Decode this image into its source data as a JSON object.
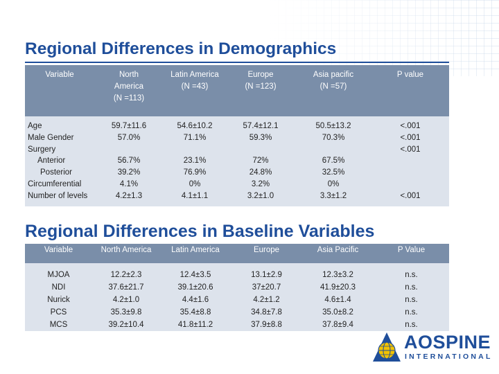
{
  "slide": {
    "title1": "Regional Differences in Demographics",
    "title2": "Regional Differences in Baseline Variables"
  },
  "demographics": {
    "headers": {
      "variable": "Variable",
      "north_america": [
        "North",
        "America",
        "(N =113)"
      ],
      "latin_america": [
        "Latin America",
        "(N =43)"
      ],
      "europe": [
        "Europe",
        "(N =123)"
      ],
      "asia_pacific": [
        "Asia pacific",
        "(N =57)"
      ],
      "p_value": "P value"
    },
    "rows": [
      {
        "label": "Age",
        "na": "59.7±11.6",
        "la": "54.6±10.2",
        "eu": "57.4±12.1",
        "ap": "50.5±13.2",
        "p": "<.001"
      },
      {
        "label": "Male Gender",
        "na": "57.0%",
        "la": "71.1%",
        "eu": "59.3%",
        "ap": "70.3%",
        "p": "<.001"
      },
      {
        "label": "Surgery",
        "na": "",
        "la": "",
        "eu": "",
        "ap": "",
        "p": "<.001"
      },
      {
        "label": "Anterior",
        "na": "56.7%",
        "la": "23.1%",
        "eu": "72%",
        "ap": "67.5%",
        "p": ""
      },
      {
        "label": "Posterior",
        "na": "39.2%",
        "la": "76.9%",
        "eu": "24.8%",
        "ap": "32.5%",
        "p": ""
      },
      {
        "label": "Circumferential",
        "na": "4.1%",
        "la": "0%",
        "eu": "3.2%",
        "ap": "0%",
        "p": ""
      },
      {
        "label": "Number of levels",
        "na": "4.2±1.3",
        "la": "4.1±1.1",
        "eu": "3.2±1.0",
        "ap": "3.3±1.2",
        "p": "<.001"
      }
    ]
  },
  "baseline": {
    "headers": {
      "variable": "Variable",
      "north_america": "North America",
      "latin_america": "Latin America",
      "europe": "Europe",
      "asia_pacific": "Asia Pacific",
      "p_value": "P Value"
    },
    "rows": [
      {
        "label": "MJOA",
        "na": "12.2±2.3",
        "la": "12.4±3.5",
        "eu": "13.1±2.9",
        "ap": "12.3±3.2",
        "p": "n.s."
      },
      {
        "label": "NDI",
        "na": "37.6±21.7",
        "la": "39.1±20.6",
        "eu": "37±20.7",
        "ap": "41.9±20.3",
        "p": "n.s."
      },
      {
        "label": "Nurick",
        "na": "4.2±1.0",
        "la": "4.4±1.6",
        "eu": "4.2±1.2",
        "ap": "4.6±1.4",
        "p": "n.s."
      },
      {
        "label": "PCS",
        "na": "35.3±9.8",
        "la": "35.4±8.8",
        "eu": "34.8±7.8",
        "ap": "35.0±8.2",
        "p": "n.s."
      },
      {
        "label": "MCS",
        "na": "39.2±10.4",
        "la": "41.8±11.2",
        "eu": "37.9±8.8",
        "ap": "37.8±9.4",
        "p": "n.s."
      }
    ]
  },
  "logo": {
    "name": "AOSPINE",
    "subtitle": "INTERNATIONAL",
    "icon": "globe-logo-icon",
    "primary_color": "#1f4e9a",
    "accent_color": "#f2c200"
  },
  "colors": {
    "title": "#1f4e9a",
    "header_bg": "#7a8ea9",
    "row_bg": "#dde3ec"
  }
}
